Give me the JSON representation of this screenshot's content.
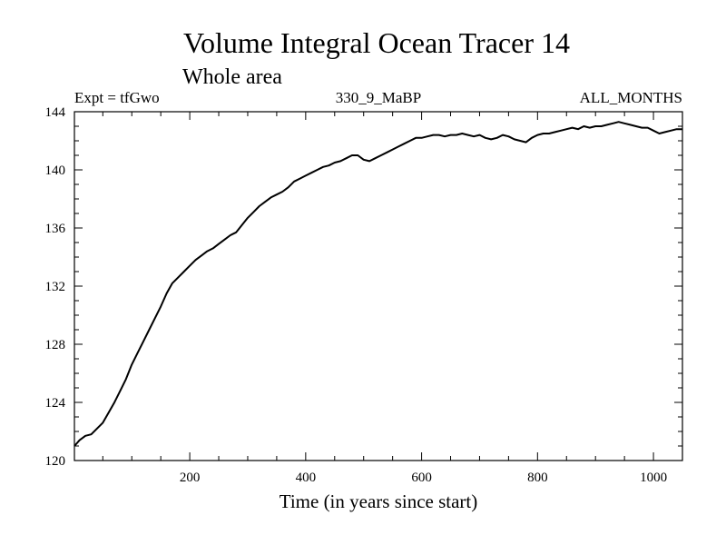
{
  "chart_data": {
    "type": "line",
    "title": "Volume Integral Ocean Tracer 14",
    "subtitle": "Whole area",
    "expt_label": "Expt = tfGwo",
    "period_label": "330_9_MaBP",
    "months_label": "ALL_MONTHS",
    "xlabel": "Time (in years since start)",
    "ylabel": "",
    "xlim": [
      1,
      1050
    ],
    "ylim": [
      120,
      144
    ],
    "x_ticks": [
      200,
      400,
      600,
      800,
      1000
    ],
    "y_ticks": [
      120,
      124,
      128,
      132,
      136,
      140,
      144
    ],
    "grid": false,
    "line_color": "#000000",
    "series": [
      {
        "x": [
          1,
          10,
          20,
          30,
          40,
          50,
          60,
          70,
          80,
          90,
          100,
          110,
          120,
          130,
          140,
          150,
          160,
          170,
          180,
          190,
          200,
          210,
          220,
          230,
          240,
          250,
          260,
          270,
          280,
          290,
          300,
          310,
          320,
          330,
          340,
          350,
          360,
          370,
          380,
          390,
          400,
          410,
          420,
          430,
          440,
          450,
          460,
          470,
          480,
          490,
          500,
          510,
          520,
          530,
          540,
          550,
          560,
          570,
          580,
          590,
          600,
          610,
          620,
          630,
          640,
          650,
          660,
          670,
          680,
          690,
          700,
          710,
          720,
          730,
          740,
          750,
          760,
          770,
          780,
          790,
          800,
          810,
          820,
          830,
          840,
          850,
          860,
          870,
          880,
          890,
          900,
          910,
          920,
          930,
          940,
          950,
          960,
          970,
          980,
          990,
          1000,
          1010,
          1020,
          1030,
          1040,
          1050
        ],
        "values": [
          121.0,
          121.4,
          121.7,
          121.8,
          122.2,
          122.6,
          123.3,
          124.0,
          124.8,
          125.6,
          126.6,
          127.4,
          128.2,
          129.0,
          129.8,
          130.6,
          131.5,
          132.2,
          132.6,
          133.0,
          133.4,
          133.8,
          134.1,
          134.4,
          134.6,
          134.9,
          135.2,
          135.5,
          135.7,
          136.2,
          136.7,
          137.1,
          137.5,
          137.8,
          138.1,
          138.3,
          138.5,
          138.8,
          139.2,
          139.4,
          139.6,
          139.8,
          140.0,
          140.2,
          140.3,
          140.5,
          140.6,
          140.8,
          141.0,
          141.0,
          140.7,
          140.6,
          140.8,
          141.0,
          141.2,
          141.4,
          141.6,
          141.8,
          142.0,
          142.2,
          142.2,
          142.3,
          142.4,
          142.4,
          142.3,
          142.4,
          142.4,
          142.5,
          142.4,
          142.3,
          142.4,
          142.2,
          142.1,
          142.2,
          142.4,
          142.3,
          142.1,
          142.0,
          141.9,
          142.2,
          142.4,
          142.5,
          142.5,
          142.6,
          142.7,
          142.8,
          142.9,
          142.8,
          143.0,
          142.9,
          143.0,
          143.0,
          143.1,
          143.2,
          143.3,
          143.2,
          143.1,
          143.0,
          142.9,
          142.9,
          142.7,
          142.5,
          142.6,
          142.7,
          142.8,
          142.8
        ]
      }
    ]
  }
}
